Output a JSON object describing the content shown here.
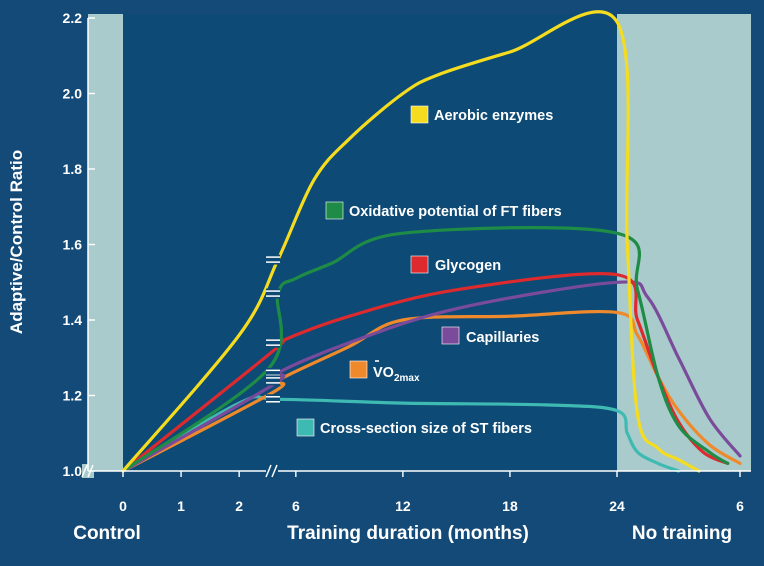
{
  "chart_data": {
    "type": "line",
    "ylabel": "Adaptive/Control Ratio",
    "ylim": [
      1.0,
      2.2
    ],
    "yticks": [
      "1.0",
      "1.2",
      "1.4",
      "1.6",
      "1.8",
      "2.0",
      "2.2"
    ],
    "grid": false,
    "sections": [
      "Control",
      "Training duration (months)",
      "No training"
    ],
    "x_ticks_early": [
      "0",
      "1",
      "2"
    ],
    "x_ticks_training": [
      "6",
      "12",
      "18",
      "24"
    ],
    "x_ticks_detraining": [
      "6"
    ],
    "x_scale": {
      "early_months": [
        0,
        2.6
      ],
      "training_months": [
        5,
        24
      ],
      "detraining_months": [
        0,
        6
      ]
    },
    "series": [
      {
        "name": "Aerobic enzymes",
        "color": "#f5dc1e",
        "training": [
          [
            0,
            1.0
          ],
          [
            2,
            1.36
          ],
          [
            5,
            1.56
          ],
          [
            7,
            1.77
          ],
          [
            9,
            1.88
          ],
          [
            12,
            2.0
          ],
          [
            14,
            2.05
          ],
          [
            18,
            2.11
          ],
          [
            24,
            2.19
          ]
        ],
        "detraining": [
          [
            0,
            2.19
          ],
          [
            0.5,
            1.6
          ],
          [
            1,
            1.15
          ],
          [
            2,
            1.06
          ],
          [
            3,
            1.03
          ],
          [
            4,
            1.0
          ]
        ]
      },
      {
        "name": "Oxidative potential of FT fibers",
        "color": "#1e8c46",
        "training": [
          [
            0,
            1.0
          ],
          [
            2.5,
            1.27
          ],
          [
            5,
            1.47
          ],
          [
            6,
            1.51
          ],
          [
            8,
            1.55
          ],
          [
            12,
            1.63
          ],
          [
            24,
            1.63
          ]
        ],
        "detraining": [
          [
            0,
            1.63
          ],
          [
            1,
            1.48
          ],
          [
            2,
            1.25
          ],
          [
            3,
            1.12
          ],
          [
            4.5,
            1.05
          ],
          [
            5.4,
            1.02
          ]
        ]
      },
      {
        "name": "Glycogen",
        "color": "#dc2a2e",
        "training": [
          [
            0,
            1.0
          ],
          [
            2.6,
            1.32
          ],
          [
            5,
            1.34
          ],
          [
            9,
            1.41
          ],
          [
            15,
            1.48
          ],
          [
            24,
            1.52
          ]
        ],
        "detraining": [
          [
            0,
            1.52
          ],
          [
            1,
            1.4
          ],
          [
            2,
            1.25
          ],
          [
            3,
            1.13
          ],
          [
            4.2,
            1.05
          ],
          [
            5.4,
            1.02
          ]
        ]
      },
      {
        "name": "Capillaries",
        "color": "#7a4a9b",
        "training": [
          [
            0,
            1.0
          ],
          [
            2.6,
            1.23
          ],
          [
            5,
            1.26
          ],
          [
            9,
            1.34
          ],
          [
            15,
            1.43
          ],
          [
            24,
            1.5
          ]
        ],
        "detraining": [
          [
            0,
            1.5
          ],
          [
            1.5,
            1.46
          ],
          [
            3,
            1.3
          ],
          [
            4.5,
            1.14
          ],
          [
            6,
            1.04
          ]
        ]
      },
      {
        "name": "V̇O2max",
        "color": "#ef8a2c",
        "training": [
          [
            0,
            1.0
          ],
          [
            2.6,
            1.21
          ],
          [
            5,
            1.24
          ],
          [
            9,
            1.33
          ],
          [
            12,
            1.4
          ],
          [
            18,
            1.41
          ],
          [
            24,
            1.42
          ]
        ],
        "detraining": [
          [
            0,
            1.42
          ],
          [
            1,
            1.36
          ],
          [
            2,
            1.25
          ],
          [
            3,
            1.16
          ],
          [
            4.5,
            1.07
          ],
          [
            6,
            1.02
          ]
        ]
      },
      {
        "name": "Cross-section size of ST fibers",
        "color": "#3fbab2",
        "training": [
          [
            0,
            1.0
          ],
          [
            2,
            1.18
          ],
          [
            5,
            1.19
          ],
          [
            12,
            1.18
          ],
          [
            20,
            1.175
          ],
          [
            24,
            1.16
          ]
        ],
        "detraining": [
          [
            0,
            1.16
          ],
          [
            0.5,
            1.1
          ],
          [
            1,
            1.05
          ],
          [
            2,
            1.02
          ],
          [
            3,
            1.0
          ]
        ]
      }
    ],
    "legend": [
      {
        "label": "Aerobic enzymes",
        "color": "#f5dc1e"
      },
      {
        "label": "Oxidative potential of FT fibers",
        "color": "#1e8c46"
      },
      {
        "label": "Glycogen",
        "color": "#dc2a2e"
      },
      {
        "label": "Capillaries",
        "color": "#7a4a9b"
      },
      {
        "label": "VO",
        "sub": "2max",
        "color": "#ef8a2c"
      },
      {
        "label": "Cross-section size of ST fibers",
        "color": "#3fbab2"
      }
    ],
    "colors": {
      "background": "#134a78",
      "shaded_region": "#a9cbcb",
      "plot_region": "#0d4a75",
      "axis": "#ffffff"
    }
  }
}
